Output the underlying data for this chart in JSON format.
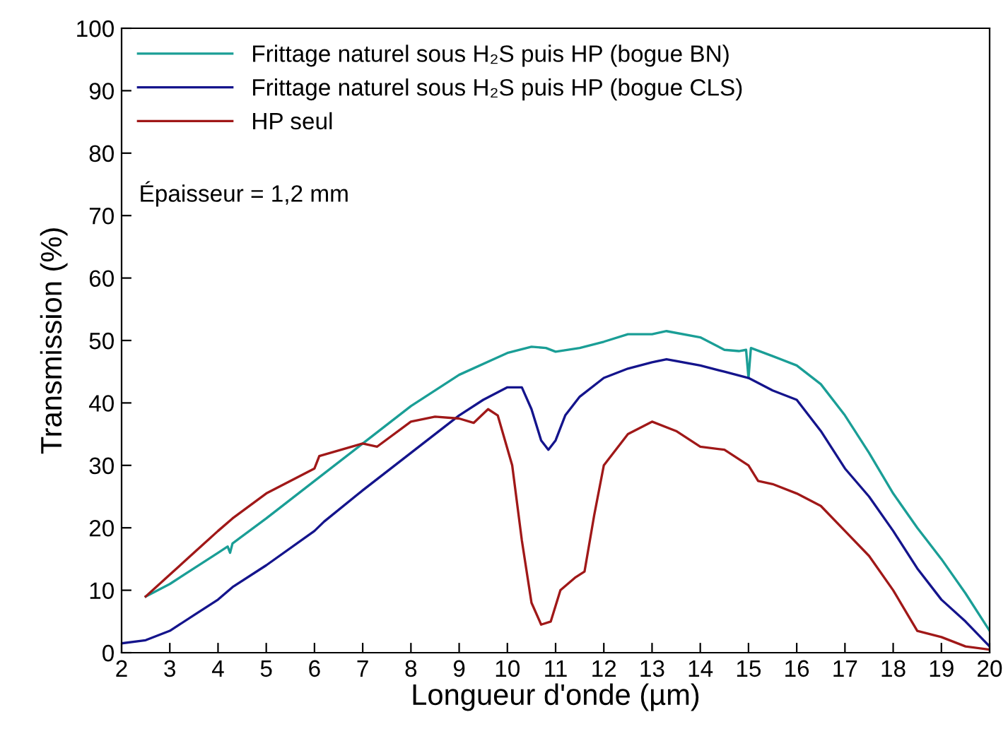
{
  "chart_data": {
    "type": "line",
    "xlabel": "Longueur d'onde (µm)",
    "ylabel": "Transmission (%)",
    "xlim": [
      2,
      20
    ],
    "ylim": [
      0,
      100
    ],
    "xticks": [
      2,
      3,
      4,
      5,
      6,
      7,
      8,
      9,
      10,
      11,
      12,
      13,
      14,
      15,
      16,
      17,
      18,
      19,
      20
    ],
    "yticks": [
      0,
      10,
      20,
      30,
      40,
      50,
      60,
      70,
      80,
      90,
      100
    ],
    "grid": false,
    "legend": "top left",
    "marker": "none",
    "line_style": "solid",
    "annotations": [
      "Épaisseur = 1,2 mm"
    ],
    "series": [
      {
        "name": "Frittage naturel sous H₂S puis HP (bogue BN)",
        "color": "#1a9e96",
        "x": [
          2.5,
          3,
          3.5,
          4,
          4.2,
          4.25,
          4.3,
          5,
          6,
          7,
          8,
          9,
          10,
          10.5,
          10.8,
          11,
          11.5,
          12,
          12.5,
          13,
          13.3,
          14,
          14.5,
          14.8,
          14.95,
          15.0,
          15.05,
          15.5,
          16,
          16.5,
          17,
          17.5,
          18,
          18.5,
          19,
          19.5,
          20
        ],
        "values": [
          9,
          11,
          13.5,
          16,
          17,
          16,
          17.5,
          21.5,
          27.5,
          33.5,
          39.5,
          44.5,
          48,
          49,
          48.8,
          48.2,
          48.8,
          49.8,
          51,
          51,
          51.5,
          50.5,
          48.5,
          48.3,
          48.5,
          44,
          48.8,
          47.5,
          46,
          43,
          38,
          32,
          25.5,
          20,
          15,
          9.5,
          3.5
        ]
      },
      {
        "name": "Frittage naturel sous H₂S puis HP (bogue CLS)",
        "color": "#14148c",
        "x": [
          2,
          2.5,
          3,
          3.5,
          4,
          4.3,
          5,
          6,
          6.2,
          7,
          8,
          9,
          9.5,
          10,
          10.3,
          10.5,
          10.7,
          10.85,
          11,
          11.2,
          11.5,
          12,
          12.5,
          13,
          13.3,
          14,
          14.5,
          15,
          15.5,
          16,
          16.5,
          17,
          17.5,
          18,
          18.5,
          19,
          19.5,
          20
        ],
        "values": [
          1.5,
          2,
          3.5,
          6,
          8.5,
          10.5,
          14,
          19.5,
          21,
          26,
          32,
          38,
          40.5,
          42.5,
          42.5,
          39,
          34,
          32.5,
          34,
          38,
          41,
          44,
          45.5,
          46.5,
          47,
          46,
          45,
          44,
          42,
          40.5,
          35.5,
          29.5,
          25,
          19.5,
          13.5,
          8.5,
          5,
          1
        ]
      },
      {
        "name": "HP seul",
        "color": "#a01818",
        "x": [
          2.5,
          3,
          3.5,
          4,
          4.3,
          5,
          6,
          6.1,
          7,
          7.3,
          8,
          8.5,
          9,
          9.3,
          9.6,
          9.8,
          10.1,
          10.3,
          10.5,
          10.7,
          10.9,
          11.1,
          11.4,
          11.6,
          11.8,
          12,
          12.5,
          13,
          13.5,
          14,
          14.5,
          15,
          15.2,
          15.5,
          16,
          16.5,
          17,
          17.5,
          18,
          18.5,
          19,
          19.5,
          20
        ],
        "values": [
          9,
          12.5,
          16,
          19.5,
          21.5,
          25.5,
          29.5,
          31.5,
          33.5,
          33,
          37,
          37.8,
          37.5,
          36.8,
          39,
          38,
          30,
          18,
          8,
          4.5,
          5,
          10,
          12,
          13,
          22,
          30,
          35,
          37,
          35.5,
          33,
          32.5,
          30,
          27.5,
          27,
          25.5,
          23.5,
          19.5,
          15.5,
          10,
          3.5,
          2.5,
          1,
          0.5
        ]
      }
    ]
  }
}
